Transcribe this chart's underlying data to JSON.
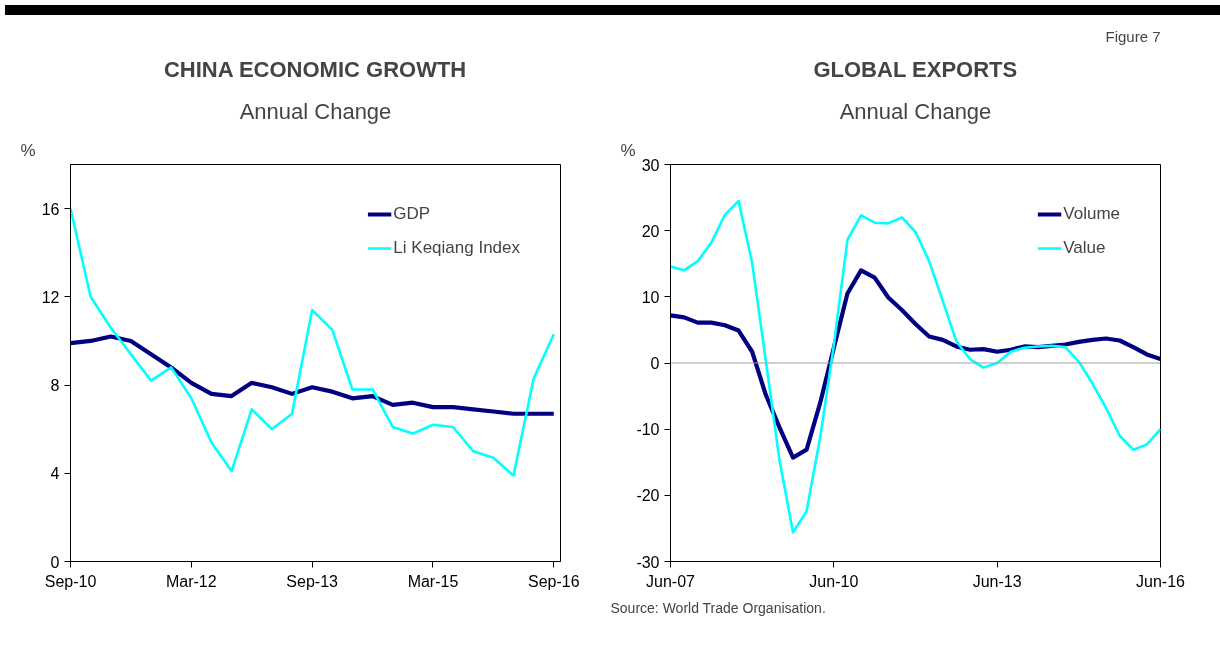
{
  "chart_data": [
    {
      "type": "line",
      "title": "CHINA ECONOMIC GROWTH",
      "subtitle": "Annual Change",
      "ylabel": "%",
      "x": [
        "2010-09",
        "2010-12",
        "2011-03",
        "2011-06",
        "2011-09",
        "2011-12",
        "2012-03",
        "2012-06",
        "2012-09",
        "2012-12",
        "2013-03",
        "2013-06",
        "2013-09",
        "2013-12",
        "2014-03",
        "2014-06",
        "2014-09",
        "2014-12",
        "2015-03",
        "2015-06",
        "2015-09",
        "2015-12",
        "2016-03",
        "2016-06",
        "2016-09"
      ],
      "series": [
        {
          "name": "GDP",
          "color": "#000080",
          "values": [
            9.9,
            10.0,
            10.2,
            10.0,
            9.4,
            8.8,
            8.1,
            7.6,
            7.5,
            8.1,
            7.9,
            7.6,
            7.9,
            7.7,
            7.4,
            7.5,
            7.1,
            7.2,
            7.0,
            7.0,
            6.9,
            6.8,
            6.7,
            6.7,
            6.7
          ]
        },
        {
          "name": "Li Keqiang Index",
          "color": "#00ffff",
          "values": [
            16.0,
            12.0,
            10.6,
            9.4,
            8.2,
            8.8,
            7.4,
            5.4,
            4.1,
            6.9,
            6.0,
            6.7,
            11.4,
            10.5,
            7.8,
            7.8,
            6.1,
            5.8,
            6.2,
            6.1,
            5.0,
            4.7,
            3.9,
            8.3,
            10.3
          ]
        }
      ],
      "xlim": [
        "2010-09",
        "2016-10"
      ],
      "xticks": [
        {
          "value": "2010-09",
          "label": "Sep-10"
        },
        {
          "value": "2012-03",
          "label": "Mar-12"
        },
        {
          "value": "2013-09",
          "label": "Sep-13"
        },
        {
          "value": "2015-03",
          "label": "Mar-15"
        },
        {
          "value": "2016-09",
          "label": "Sep-16"
        }
      ],
      "ylim": [
        0,
        18
      ],
      "yticks": [
        0,
        4,
        8,
        12,
        16
      ],
      "grid": false,
      "legend": "top right",
      "line_style": "solid",
      "marker": "none"
    },
    {
      "type": "line",
      "title": "GLOBAL EXPORTS",
      "subtitle": "Annual Change",
      "ylabel": "%",
      "x": [
        "2007-06",
        "2007-09",
        "2007-12",
        "2008-03",
        "2008-06",
        "2008-09",
        "2008-12",
        "2009-03",
        "2009-06",
        "2009-09",
        "2009-12",
        "2010-03",
        "2010-06",
        "2010-09",
        "2010-12",
        "2011-03",
        "2011-06",
        "2011-09",
        "2011-12",
        "2012-03",
        "2012-06",
        "2012-09",
        "2012-12",
        "2013-03",
        "2013-06",
        "2013-09",
        "2013-12",
        "2014-03",
        "2014-06",
        "2014-09",
        "2014-12",
        "2015-03",
        "2015-06",
        "2015-09",
        "2015-12",
        "2016-03",
        "2016-06"
      ],
      "series": [
        {
          "name": "Volume",
          "color": "#000080",
          "values": [
            7.2,
            6.9,
            6.1,
            6.1,
            5.7,
            4.9,
            1.7,
            -4.8,
            -9.7,
            -14.3,
            -13.1,
            -6.0,
            2.3,
            10.5,
            14.0,
            12.9,
            9.9,
            8.0,
            5.9,
            4.0,
            3.5,
            2.5,
            2.0,
            2.1,
            1.7,
            2.0,
            2.5,
            2.4,
            2.6,
            2.8,
            3.2,
            3.5,
            3.7,
            3.4,
            2.4,
            1.3,
            0.6
          ]
        },
        {
          "name": "Value",
          "color": "#00ffff",
          "values": [
            14.6,
            14.0,
            15.4,
            18.2,
            22.4,
            24.5,
            15.1,
            0.4,
            -14.6,
            -25.6,
            -22.4,
            -11.2,
            2.7,
            18.6,
            22.3,
            21.2,
            21.1,
            22.0,
            19.8,
            15.4,
            9.4,
            3.3,
            0.6,
            -0.7,
            0.0,
            1.7,
            2.3,
            2.5,
            2.6,
            2.4,
            0.2,
            -3.1,
            -6.8,
            -11.0,
            -13.1,
            -12.3,
            -10.0
          ]
        }
      ],
      "xlim": [
        "2007-06",
        "2016-06"
      ],
      "xticks": [
        {
          "value": "2007-06",
          "label": "Jun-07"
        },
        {
          "value": "2010-06",
          "label": "Jun-10"
        },
        {
          "value": "2013-06",
          "label": "Jun-13"
        },
        {
          "value": "2016-06",
          "label": "Jun-16"
        }
      ],
      "ylim": [
        -30,
        30
      ],
      "yticks": [
        -30,
        -20,
        -10,
        0,
        10,
        20,
        30
      ],
      "grid": false,
      "legend": "top right",
      "line_style": "solid",
      "marker": "none",
      "ref_lines": [
        {
          "axis": "y",
          "value": 0,
          "color": "#a0a0a0"
        }
      ],
      "annotations": [
        "Figure 7",
        "Source: World Trade Organisation."
      ]
    }
  ]
}
